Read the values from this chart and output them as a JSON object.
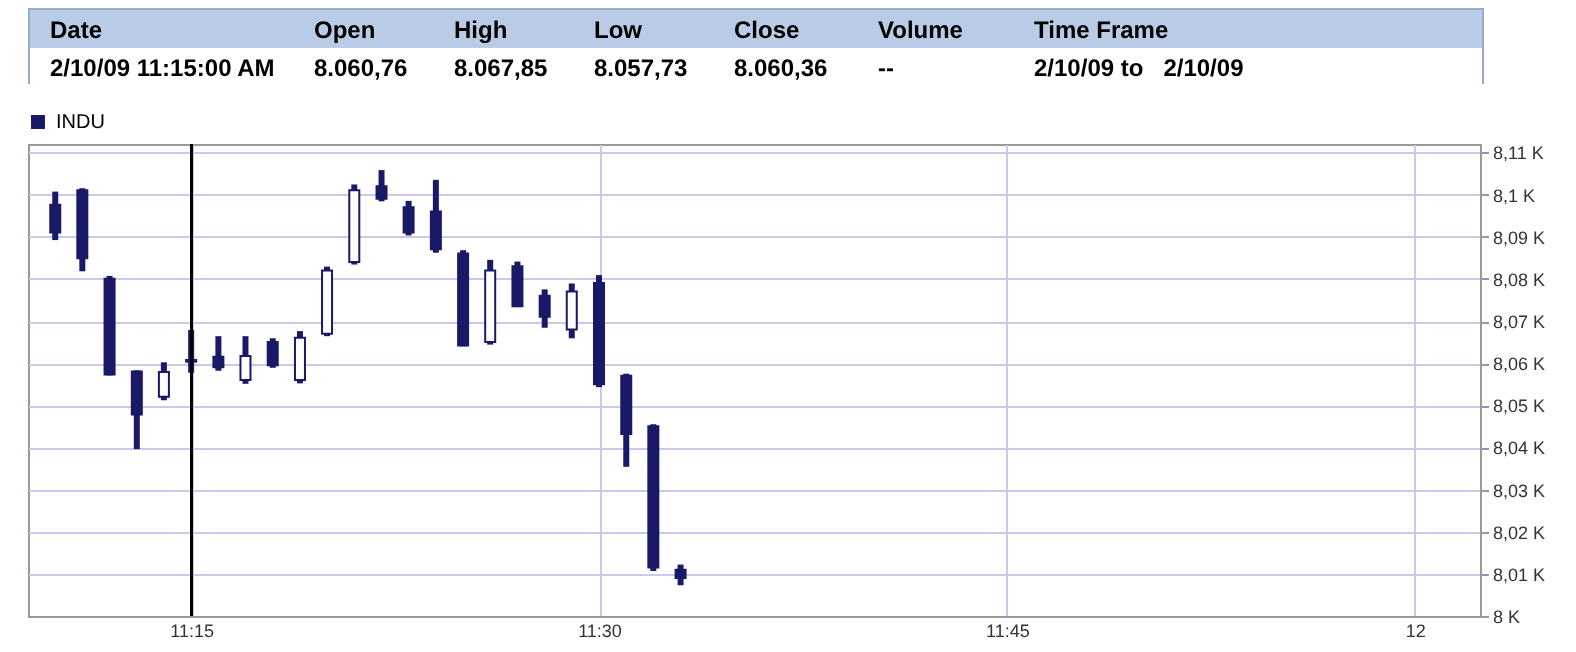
{
  "chart_data": {
    "type": "candlestick",
    "annotations": [
      "Date",
      "Open",
      "High",
      "Low",
      "Close",
      "Volume",
      "Time Frame",
      "2/10/09 11:15:00 AM",
      "8.060,76",
      "8.067,85",
      "8.057,73",
      "8.060,36",
      "--",
      "2/10/09 to   2/10/09"
    ],
    "x": [
      11.1667,
      11.1833,
      11.2,
      11.2167,
      11.2333,
      11.25,
      11.2667,
      11.2833,
      11.3,
      11.3167,
      11.3333,
      11.35,
      11.3667,
      11.3833,
      11.4,
      11.4167,
      11.4333,
      11.45,
      11.4667,
      11.4833,
      11.5,
      11.5167,
      11.5333,
      11.55
    ],
    "series": [
      {
        "name": "INDU",
        "color": "#191966",
        "ohlc": [
          [
            8097.6,
            8100.7,
            8089.2,
            8091
          ],
          [
            8101,
            8101.5,
            8081.8,
            8084.9
          ],
          [
            8080,
            8080.7,
            8057.1,
            8057.3
          ],
          [
            8058,
            8058.3,
            8039.6,
            8047.8
          ],
          [
            8052,
            8060.2,
            8051.2,
            8057.9
          ],
          [
            8060.76,
            8067.85,
            8057.73,
            8060.36
          ],
          [
            8061.5,
            8066.4,
            8058.2,
            8059
          ],
          [
            8056,
            8066.4,
            8055.1,
            8061.7
          ],
          [
            8065,
            8065.9,
            8058.9,
            8059.5
          ],
          [
            8056,
            8067.6,
            8055.2,
            8066
          ],
          [
            8067,
            8082.9,
            8066.4,
            8082
          ],
          [
            8084,
            8102.4,
            8083.4,
            8101
          ],
          [
            8102,
            8105.8,
            8098.4,
            8099
          ],
          [
            8097,
            8098.5,
            8090.3,
            8091
          ],
          [
            8096,
            8103.5,
            8086.2,
            8087
          ],
          [
            8086,
            8086.8,
            8064,
            8064.2
          ],
          [
            8065,
            8084.5,
            8064.4,
            8082
          ],
          [
            8083,
            8084.1,
            8073.3,
            8073.5
          ],
          [
            8076,
            8077.5,
            8068.4,
            8071
          ],
          [
            8068,
            8078.9,
            8065.9,
            8077
          ],
          [
            8079,
            8080.9,
            8054.3,
            8055
          ],
          [
            8057,
            8057.5,
            8035.4,
            8043.2
          ],
          [
            8045,
            8045.5,
            8010.7,
            8011.5
          ],
          [
            8011,
            8012.2,
            8007.3,
            8009
          ]
        ]
      }
    ],
    "xlim": [
      11.15,
      12.04
    ],
    "xticks": [
      {
        "value": 11.25,
        "label": "11:15"
      },
      {
        "value": 11.5,
        "label": "11:30"
      },
      {
        "value": 11.75,
        "label": "11:45"
      },
      {
        "value": 12,
        "label": "12"
      }
    ],
    "ylim": [
      8000,
      8112
    ],
    "yticks": [
      {
        "value": 8000,
        "label": "8 K"
      },
      {
        "value": 8010,
        "label": "8,01 K"
      },
      {
        "value": 8020,
        "label": "8,02 K"
      },
      {
        "value": 8030,
        "label": "8,03 K"
      },
      {
        "value": 8040,
        "label": "8,04 K"
      },
      {
        "value": 8050,
        "label": "8,05 K"
      },
      {
        "value": 8060,
        "label": "8,06 K"
      },
      {
        "value": 8070,
        "label": "8,07 K"
      },
      {
        "value": 8080,
        "label": "8,08 K"
      },
      {
        "value": 8090,
        "label": "8,09 K"
      },
      {
        "value": 8100,
        "label": "8,1 K"
      },
      {
        "value": 8110,
        "label": "8,11 K"
      }
    ],
    "ref_lines": [
      {
        "axis": "x",
        "value": 11.25,
        "color": "#000000"
      }
    ],
    "grid": true,
    "legend": "top left"
  }
}
